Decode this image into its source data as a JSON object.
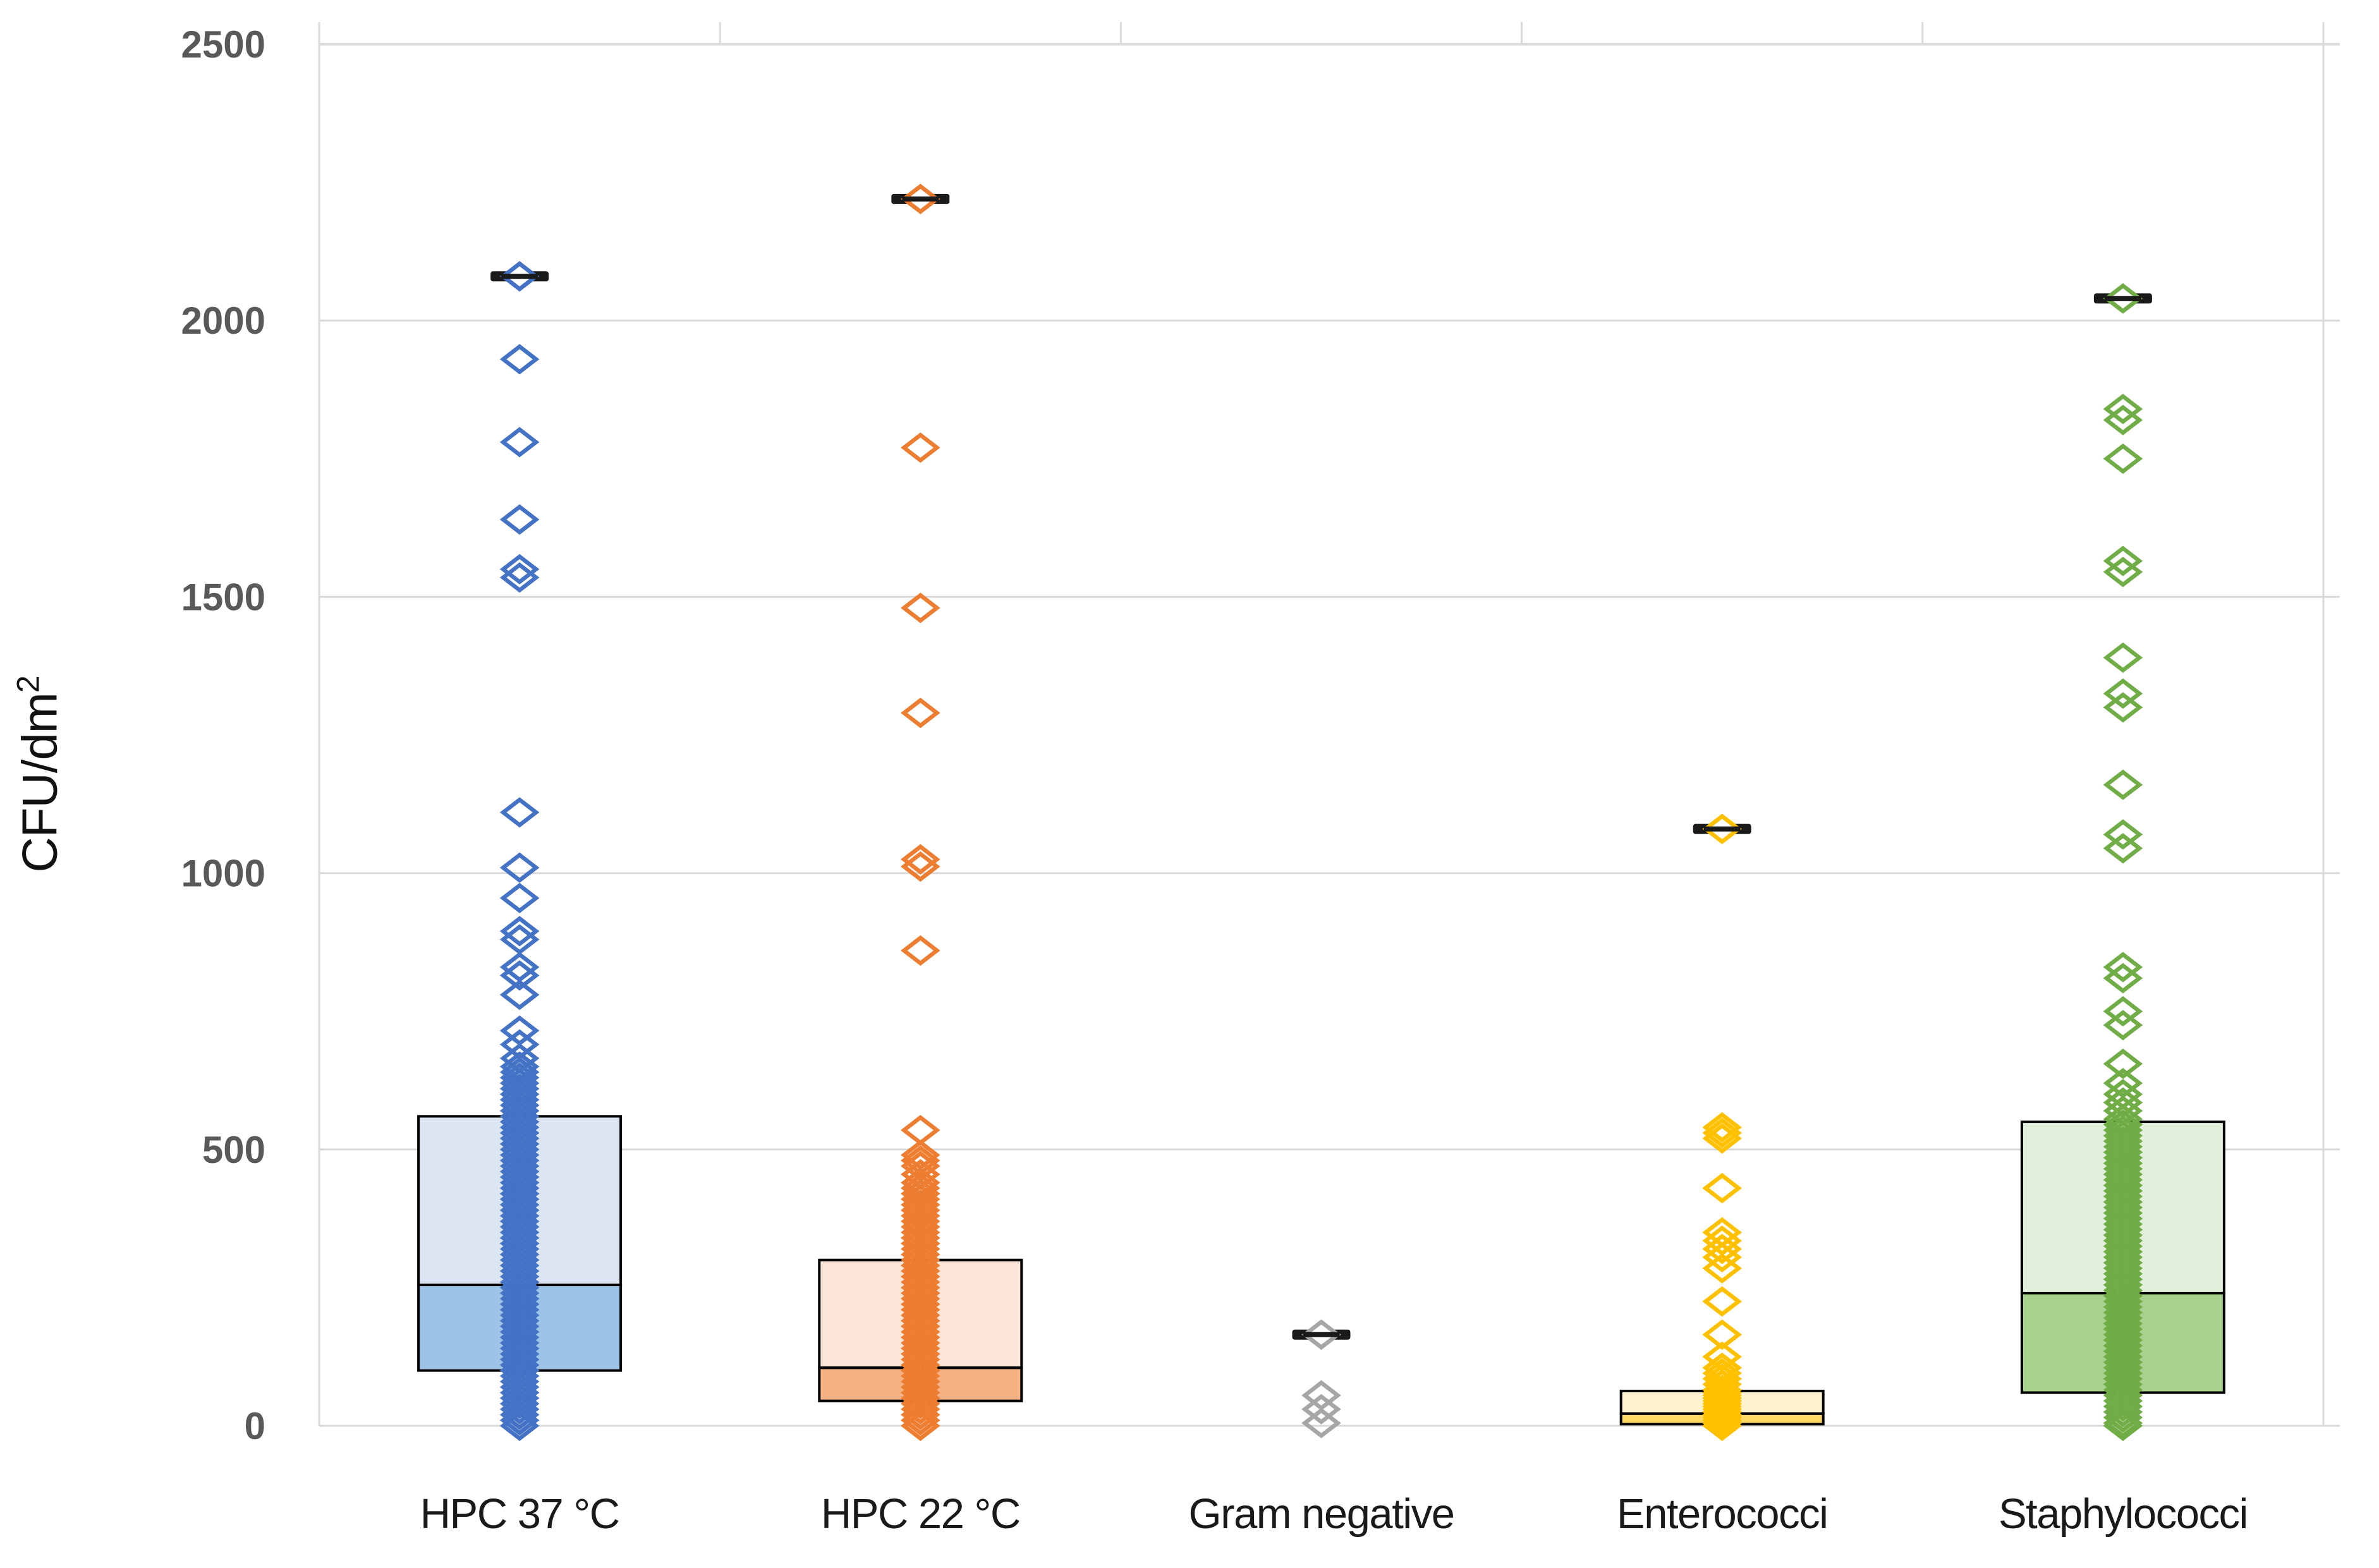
{
  "chart": {
    "ylabel_base": "CFU/dm",
    "ylabel_sup": "2"
  },
  "chart_data": {
    "type": "scatter",
    "subtype": "box-plot-with-stacked-scatter-overlay",
    "title": "",
    "xlabel": "",
    "ylabel": "CFU/dm²",
    "ylim": [
      0,
      2500
    ],
    "yticks": [
      0,
      500,
      1000,
      1500,
      2000,
      2500
    ],
    "grid": "horizontal",
    "grid_color": "#D9D9D9",
    "tick_label_color": "#595959",
    "category_label_color": "#1A1A1A",
    "box_border_color": "#000000",
    "max_marker_color": "#1A1A1A",
    "marker": "hollow-diamond",
    "legend": "none",
    "categories": [
      "HPC 37 °C",
      "HPC 22 °C",
      "Gram negative",
      "Enterococci",
      "Staphylococci"
    ],
    "series": [
      {
        "name": "HPC 37 °C",
        "color": "#4472C4",
        "box": {
          "q1": 100,
          "median": 255,
          "q3": 560,
          "fill_upper": "#DCE6F2",
          "fill_lower": "#9DC3E6"
        },
        "max_marker": 2080,
        "points": [
          2080,
          1930,
          1780,
          1640,
          1550,
          1535,
          1110,
          1010,
          955,
          895,
          880,
          830,
          815,
          780,
          715,
          690,
          665,
          650,
          640,
          630,
          620,
          610,
          600,
          590,
          580,
          570,
          560,
          550,
          540,
          530,
          520,
          510,
          500,
          490,
          480,
          470,
          460,
          450,
          440,
          430,
          420,
          410,
          400,
          390,
          380,
          370,
          360,
          350,
          340,
          330,
          320,
          310,
          300,
          290,
          280,
          270,
          260,
          250,
          240,
          230,
          220,
          210,
          200,
          190,
          180,
          170,
          160,
          150,
          140,
          130,
          120,
          110,
          100,
          90,
          80,
          70,
          60,
          50,
          40,
          30,
          20,
          10,
          0
        ]
      },
      {
        "name": "HPC 22 °C",
        "color": "#ED7D31",
        "box": {
          "q1": 45,
          "median": 105,
          "q3": 300,
          "fill_upper": "#FBE5D6",
          "fill_lower": "#F4B183"
        },
        "max_marker": 2220,
        "points": [
          2220,
          1770,
          1480,
          1290,
          1025,
          1012,
          860,
          535,
          490,
          480,
          470,
          455,
          440,
          430,
          420,
          410,
          400,
          390,
          380,
          370,
          360,
          350,
          340,
          330,
          320,
          310,
          300,
          290,
          280,
          270,
          260,
          250,
          240,
          230,
          220,
          210,
          200,
          190,
          180,
          170,
          160,
          150,
          140,
          130,
          120,
          110,
          100,
          90,
          80,
          70,
          60,
          50,
          40,
          30,
          20,
          10,
          0
        ]
      },
      {
        "name": "Gram negative",
        "color": "#A6A6A6",
        "box": null,
        "max_marker": 165,
        "points": [
          165,
          55,
          30,
          5
        ]
      },
      {
        "name": "Enterococci",
        "color": "#FFC000",
        "box": {
          "q1": 3,
          "median": 22,
          "q3": 63,
          "fill_upper": "#FFF2CC",
          "fill_lower": "#FFD966"
        },
        "max_marker": 1080,
        "points": [
          1080,
          540,
          530,
          520,
          430,
          350,
          335,
          320,
          305,
          285,
          225,
          165,
          125,
          105,
          95,
          85,
          75,
          65,
          60,
          55,
          50,
          45,
          40,
          35,
          30,
          25,
          20,
          15,
          10,
          5,
          0
        ]
      },
      {
        "name": "Staphylococci",
        "color": "#70AD47",
        "box": {
          "q1": 60,
          "median": 240,
          "q3": 550,
          "fill_upper": "#E2EFDA",
          "fill_lower": "#A9D18E"
        },
        "max_marker": 2040,
        "points": [
          2040,
          1840,
          1820,
          1750,
          1565,
          1545,
          1390,
          1325,
          1300,
          1160,
          1070,
          1045,
          830,
          810,
          750,
          725,
          655,
          620,
          600,
          585,
          570,
          555,
          545,
          535,
          525,
          515,
          505,
          495,
          485,
          475,
          465,
          455,
          445,
          435,
          425,
          415,
          405,
          395,
          385,
          375,
          365,
          355,
          345,
          335,
          325,
          315,
          305,
          295,
          285,
          275,
          265,
          255,
          245,
          235,
          225,
          215,
          205,
          195,
          185,
          175,
          165,
          155,
          145,
          135,
          125,
          115,
          105,
          95,
          85,
          75,
          65,
          55,
          45,
          35,
          25,
          15,
          5,
          0
        ]
      }
    ],
    "notes": "Short black horizontal dash marks the maximum value of each group"
  }
}
